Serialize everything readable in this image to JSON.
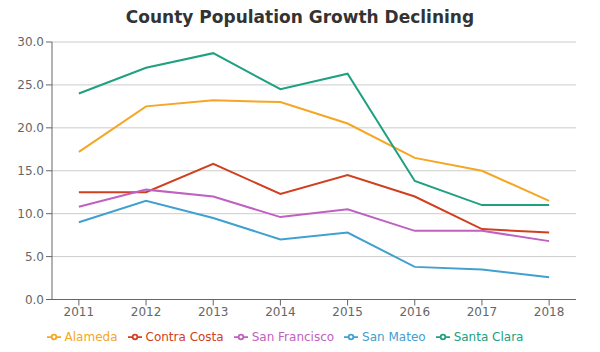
{
  "chart_data": {
    "type": "line",
    "title": "County Population Growth Declining",
    "x": [
      2011,
      2012,
      2013,
      2014,
      2015,
      2016,
      2017,
      2018
    ],
    "series": [
      {
        "name": "Alameda",
        "color": "#F5A623",
        "values": [
          17.2,
          22.5,
          23.2,
          23.0,
          20.5,
          16.5,
          15.0,
          11.5
        ]
      },
      {
        "name": "Contra Costa",
        "color": "#D04020",
        "values": [
          12.5,
          12.5,
          15.8,
          12.3,
          14.5,
          12.0,
          8.2,
          7.8
        ]
      },
      {
        "name": "San Francisco",
        "color": "#C060C0",
        "values": [
          10.8,
          12.8,
          12.0,
          9.6,
          10.5,
          8.0,
          8.0,
          6.8
        ]
      },
      {
        "name": "San Mateo",
        "color": "#40A0D0",
        "values": [
          9.0,
          11.5,
          9.5,
          7.0,
          7.8,
          3.8,
          3.5,
          2.6
        ]
      },
      {
        "name": "Santa Clara",
        "color": "#20A080",
        "values": [
          24.0,
          27.0,
          28.7,
          24.5,
          26.3,
          13.8,
          11.0,
          11.0
        ]
      }
    ],
    "xlim": [
      2010.6,
      2018.4
    ],
    "xticks": [
      2011,
      2012,
      2013,
      2014,
      2015,
      2016,
      2017,
      2018
    ],
    "ylim": [
      0,
      30
    ],
    "yticks": [
      {
        "value": 0,
        "label": "0.0"
      },
      {
        "value": 5,
        "label": "5.0"
      },
      {
        "value": 10,
        "label": "10.0"
      },
      {
        "value": 15,
        "label": "15.0"
      },
      {
        "value": 20,
        "label": "20.0"
      },
      {
        "value": 25,
        "label": "25.0"
      },
      {
        "value": 30,
        "label": "30.0"
      }
    ],
    "grid": true,
    "legend": "bottom"
  }
}
